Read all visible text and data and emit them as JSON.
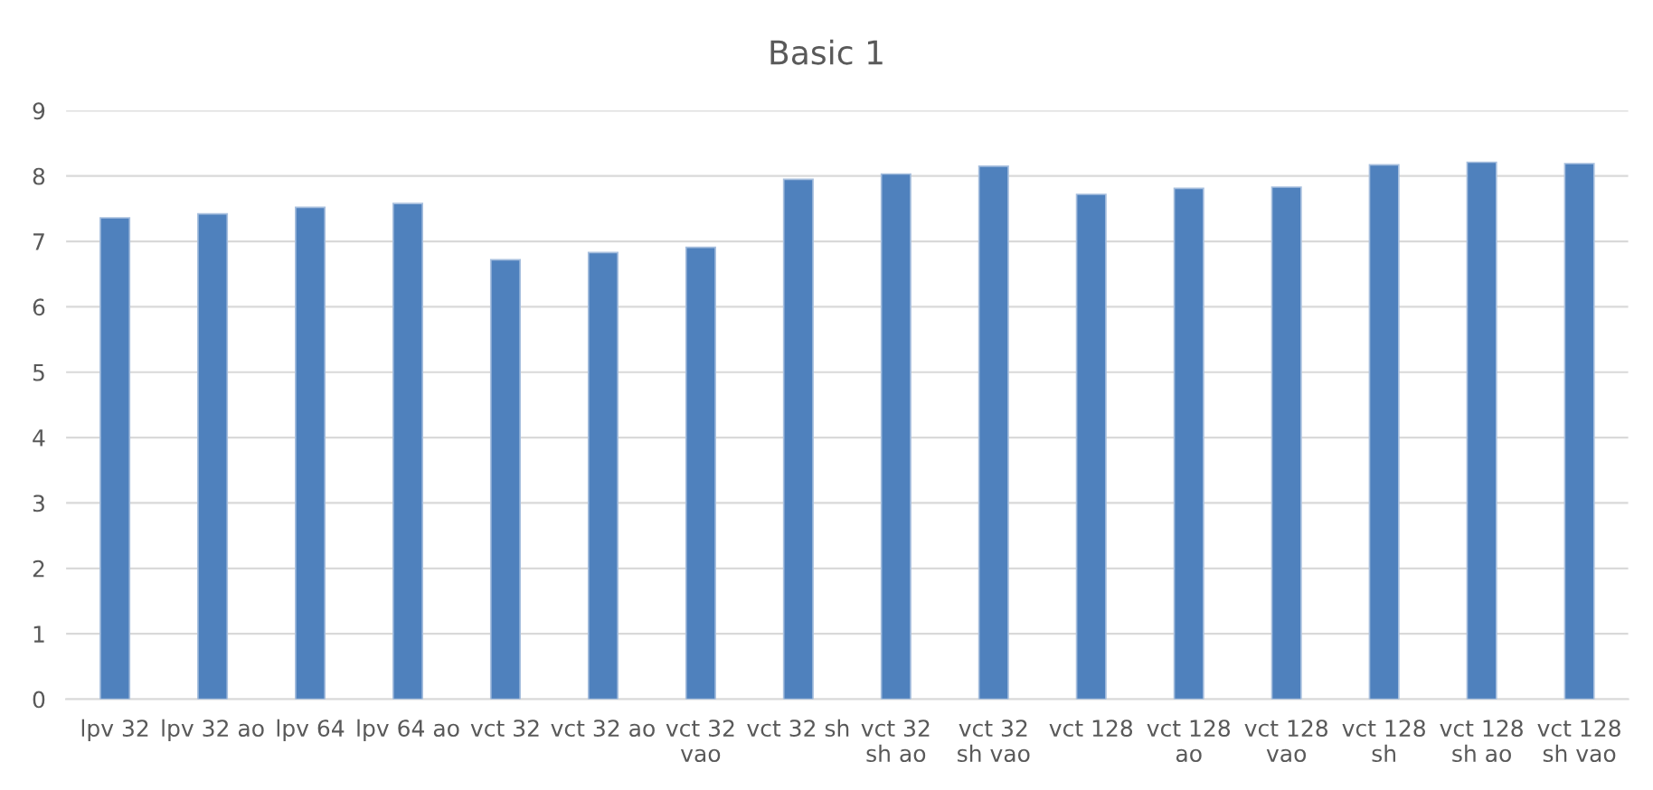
{
  "chart_data": {
    "type": "bar",
    "title": "Basic 1",
    "categories": [
      "lpv 32",
      "lpv 32 ao",
      "lpv 64",
      "lpv 64 ao",
      "vct 32",
      "vct 32 ao",
      "vct 32 vao",
      "vct 32 sh",
      "vct 32 sh ao",
      "vct 32 sh vao",
      "vct 128",
      "vct 128 ao",
      "vct 128 vao",
      "vct 128 sh",
      "vct 128 sh ao",
      "vct 128 sh vao"
    ],
    "values": [
      7.36,
      7.42,
      7.52,
      7.58,
      6.72,
      6.83,
      6.91,
      7.95,
      8.03,
      8.15,
      7.72,
      7.81,
      7.83,
      8.17,
      8.21,
      8.19
    ],
    "color": "#4f81bd",
    "ylim": [
      0,
      9
    ],
    "yticks": [
      0,
      1,
      2,
      3,
      4,
      5,
      6,
      7,
      8,
      9
    ],
    "grid": "y"
  }
}
